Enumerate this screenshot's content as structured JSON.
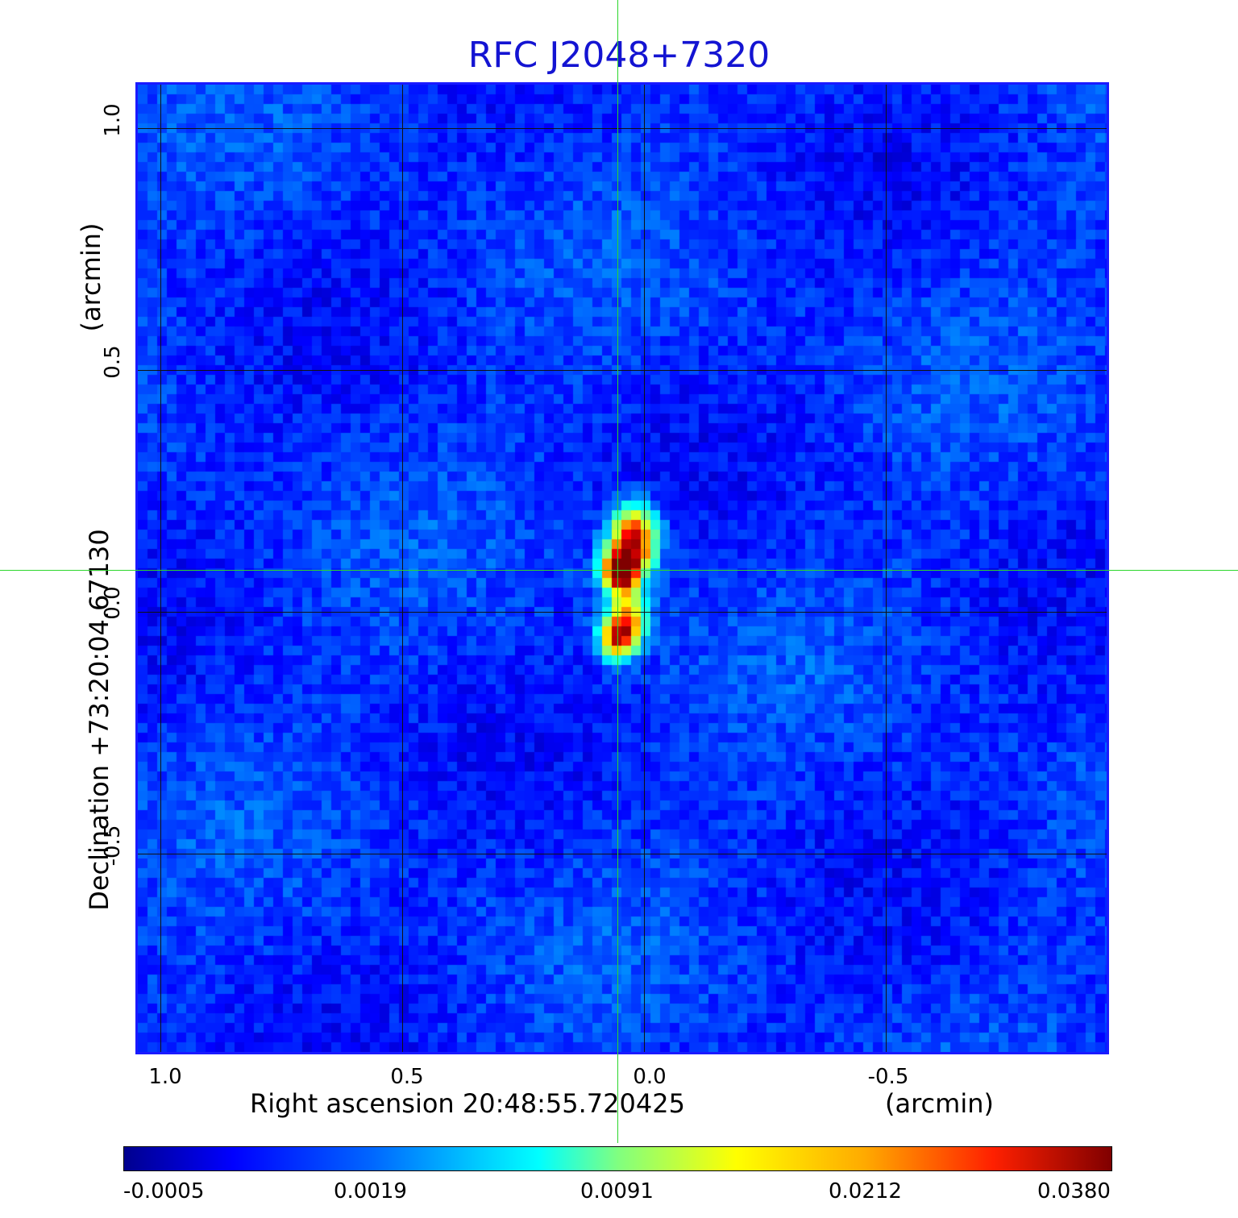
{
  "title": "RFC J2048+7320",
  "x_axis": {
    "label": "Right ascension  20:48:55.720425",
    "unit": "(arcmin)",
    "ticks": [
      "1.0",
      "0.5",
      "0.0",
      "-0.5"
    ]
  },
  "y_axis": {
    "label": "Declination  +73:20:04.67130",
    "unit": "(arcmin)",
    "ticks": [
      "1.0",
      "0.5",
      "0.0",
      "-0.5"
    ]
  },
  "colorbar": {
    "ticks": [
      "-0.0005",
      "0.0019",
      "0.0091",
      "0.0212",
      "0.0380"
    ],
    "colormap": "jet"
  },
  "colors": {
    "title": "#1414d2",
    "crosshair": "#2bd62b",
    "background_field": "#2346ef",
    "frame": "#1a1aff"
  }
}
